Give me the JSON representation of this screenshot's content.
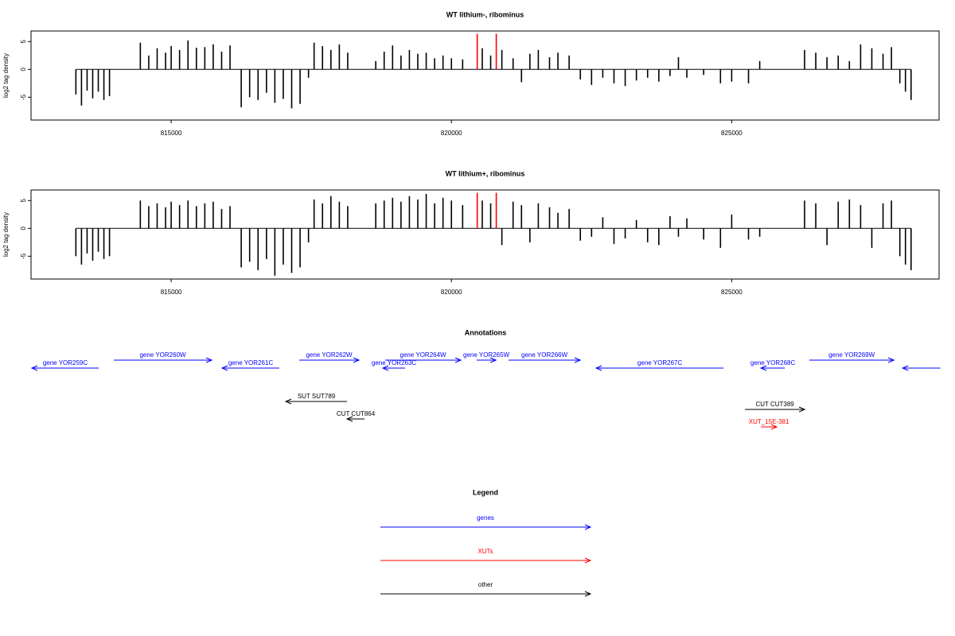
{
  "chart_data": [
    {
      "type": "bar",
      "title": "WT lithium-, ribominus",
      "ylabel": "log2 tag density",
      "xlim": [
        812500,
        828700
      ],
      "ylim": [
        -9.1,
        6.9
      ],
      "xticks": [
        815000,
        820000,
        825000
      ],
      "yticks": [
        -5,
        0,
        5
      ],
      "series": [
        {
          "color": "#000000",
          "x": [
            813300,
            813400,
            813500,
            813600,
            813700,
            813800,
            813900,
            814450,
            814600,
            814750,
            814900,
            815000,
            815150,
            815300,
            815450,
            815600,
            815750,
            815900,
            816050,
            816250,
            816400,
            816550,
            816700,
            816850,
            817000,
            817150,
            817300,
            817450,
            817550,
            817700,
            817850,
            818000,
            818150,
            818650,
            818800,
            818950,
            819100,
            819250,
            819400,
            819550,
            819700,
            819850,
            820000,
            820200,
            820550,
            820700,
            820900,
            821100,
            821250,
            821400,
            821550,
            821750,
            821900,
            822100,
            822300,
            822500,
            822700,
            822900,
            823100,
            823300,
            823500,
            823700,
            823900,
            824050,
            824200,
            824500,
            824800,
            825000,
            825300,
            825500,
            826300,
            826500,
            826700,
            826900,
            827100,
            827300,
            827500,
            827700,
            827850,
            828000,
            828100,
            828200
          ],
          "values": [
            -4.5,
            -6.5,
            -3.8,
            -5.2,
            -4.0,
            -5.5,
            -4.8,
            4.8,
            2.5,
            3.8,
            3.0,
            4.2,
            3.5,
            5.2,
            3.9,
            4.0,
            4.5,
            3.2,
            4.3,
            -6.8,
            -5.0,
            -5.5,
            -4.2,
            -6.0,
            -5.3,
            -7.0,
            -6.2,
            -1.5,
            4.8,
            4.2,
            3.5,
            4.5,
            3.0,
            1.5,
            3.2,
            4.3,
            2.5,
            3.5,
            2.8,
            3.0,
            2.0,
            2.5,
            2.0,
            1.8,
            3.8,
            2.5,
            3.5,
            2.0,
            -2.3,
            2.8,
            3.5,
            2.2,
            3.0,
            2.5,
            -1.8,
            -2.8,
            -1.5,
            -2.5,
            -3.0,
            -2.0,
            -1.5,
            -2.2,
            -1.2,
            2.2,
            -1.5,
            -1.0,
            -2.5,
            -2.2,
            -2.5,
            1.5,
            3.5,
            3.0,
            2.2,
            2.5,
            1.5,
            4.5,
            3.8,
            2.8,
            4.0,
            -2.5,
            -4.0,
            -5.5
          ]
        },
        {
          "color": "#ff0000",
          "x": [
            820460,
            820800
          ],
          "values": [
            6.4,
            6.4
          ]
        }
      ]
    },
    {
      "type": "bar",
      "title": "WT lithium+, ribominus",
      "ylabel": "log2 tag density",
      "xlim": [
        812500,
        828700
      ],
      "ylim": [
        -9.1,
        6.9
      ],
      "xticks": [
        815000,
        820000,
        825000
      ],
      "yticks": [
        -5,
        0,
        5
      ],
      "series": [
        {
          "color": "#000000",
          "x": [
            813300,
            813400,
            813500,
            813600,
            813700,
            813800,
            813900,
            814450,
            814600,
            814750,
            814900,
            815000,
            815150,
            815300,
            815450,
            815600,
            815750,
            815900,
            816050,
            816250,
            816400,
            816550,
            816700,
            816850,
            817000,
            817150,
            817300,
            817450,
            817550,
            817700,
            817850,
            818000,
            818150,
            818650,
            818800,
            818950,
            819100,
            819250,
            819400,
            819550,
            819700,
            819850,
            820000,
            820200,
            820550,
            820700,
            820900,
            821100,
            821250,
            821400,
            821550,
            821750,
            821900,
            822100,
            822300,
            822500,
            822700,
            822900,
            823100,
            823300,
            823500,
            823700,
            823900,
            824050,
            824200,
            824500,
            824800,
            825000,
            825300,
            825500,
            826300,
            826500,
            826700,
            826900,
            827100,
            827300,
            827500,
            827700,
            827850,
            828000,
            828100,
            828200
          ],
          "values": [
            -5.0,
            -6.5,
            -4.5,
            -5.8,
            -4.2,
            -5.5,
            -5.0,
            5.0,
            4.0,
            4.5,
            3.8,
            4.8,
            4.2,
            5.0,
            4.0,
            4.5,
            4.8,
            3.5,
            4.0,
            -7.0,
            -6.0,
            -7.5,
            -5.5,
            -8.5,
            -6.5,
            -8.0,
            -7.0,
            -2.5,
            5.2,
            4.5,
            5.8,
            4.8,
            4.0,
            4.5,
            5.0,
            5.5,
            4.8,
            5.8,
            5.2,
            6.2,
            4.5,
            5.5,
            5.0,
            4.2,
            5.0,
            4.5,
            -3.0,
            4.8,
            4.2,
            -2.5,
            4.5,
            3.8,
            2.8,
            3.5,
            -2.2,
            -1.5,
            2.0,
            -2.8,
            -1.8,
            1.5,
            -2.5,
            -3.0,
            2.2,
            -1.5,
            1.8,
            -2.0,
            -3.5,
            2.5,
            -2.0,
            -1.5,
            5.0,
            4.5,
            -3.0,
            4.8,
            5.2,
            4.2,
            -3.5,
            4.5,
            5.0,
            -5.0,
            -6.5,
            -7.5
          ]
        },
        {
          "color": "#ff0000",
          "x": [
            820460,
            820800
          ],
          "values": [
            6.4,
            6.4
          ]
        }
      ]
    },
    {
      "type": "annotation",
      "title": "Annotations",
      "xlim": [
        812500,
        828700
      ],
      "features": [
        {
          "label": "gene YOR259C",
          "from": 813707,
          "to": 812514,
          "color": "#0000ff"
        },
        {
          "label": "gene YOR260W",
          "from": 813977,
          "to": 815723,
          "color": "#0000ff"
        },
        {
          "label": "gene YOR261C",
          "from": 816930,
          "to": 815908,
          "color": "#0000ff"
        },
        {
          "label": "gene YOR262W",
          "from": 817285,
          "to": 818350,
          "color": "#0000ff"
        },
        {
          "label": "gene YOR263C",
          "from": 819174,
          "to": 818776,
          "color": "#0000ff"
        },
        {
          "label": "gene YOR264W",
          "from": 818819,
          "to": 820168,
          "color": "#0000ff"
        },
        {
          "label": "gene YOR265W",
          "from": 820452,
          "to": 820793,
          "color": "#0000ff"
        },
        {
          "label": "gene YOR266W",
          "from": 821020,
          "to": 822298,
          "color": "#0000ff"
        },
        {
          "label": "gene YOR267C",
          "from": 824854,
          "to": 822582,
          "color": "#0000ff"
        },
        {
          "label": "gene YOR268C",
          "from": 825947,
          "to": 825521,
          "color": "#0000ff"
        },
        {
          "label": "gene YOR269W",
          "from": 826387,
          "to": 827893,
          "color": "#0000ff"
        },
        {
          "label": null,
          "from": 828722,
          "to": 828049,
          "color": "#0000ff"
        },
        {
          "label": "SUT SUT789",
          "from": 818137,
          "to": 817044,
          "color": "#000000"
        },
        {
          "label": "CUT CUT864",
          "from": 818450,
          "to": 818137,
          "color": "#000000"
        },
        {
          "label": "CUT CUT389",
          "from": 825237,
          "to": 826302,
          "color": "#000000"
        },
        {
          "label": "XUT_15E-381",
          "from": 825521,
          "to": 825805,
          "color": "#ff0000"
        }
      ]
    },
    {
      "type": "legend",
      "title": "Legend",
      "series": [
        {
          "name": "genes",
          "color": "#0000ff"
        },
        {
          "name": "XUTs",
          "color": "#ff0000"
        },
        {
          "name": "other",
          "color": "#000000"
        }
      ]
    }
  ]
}
